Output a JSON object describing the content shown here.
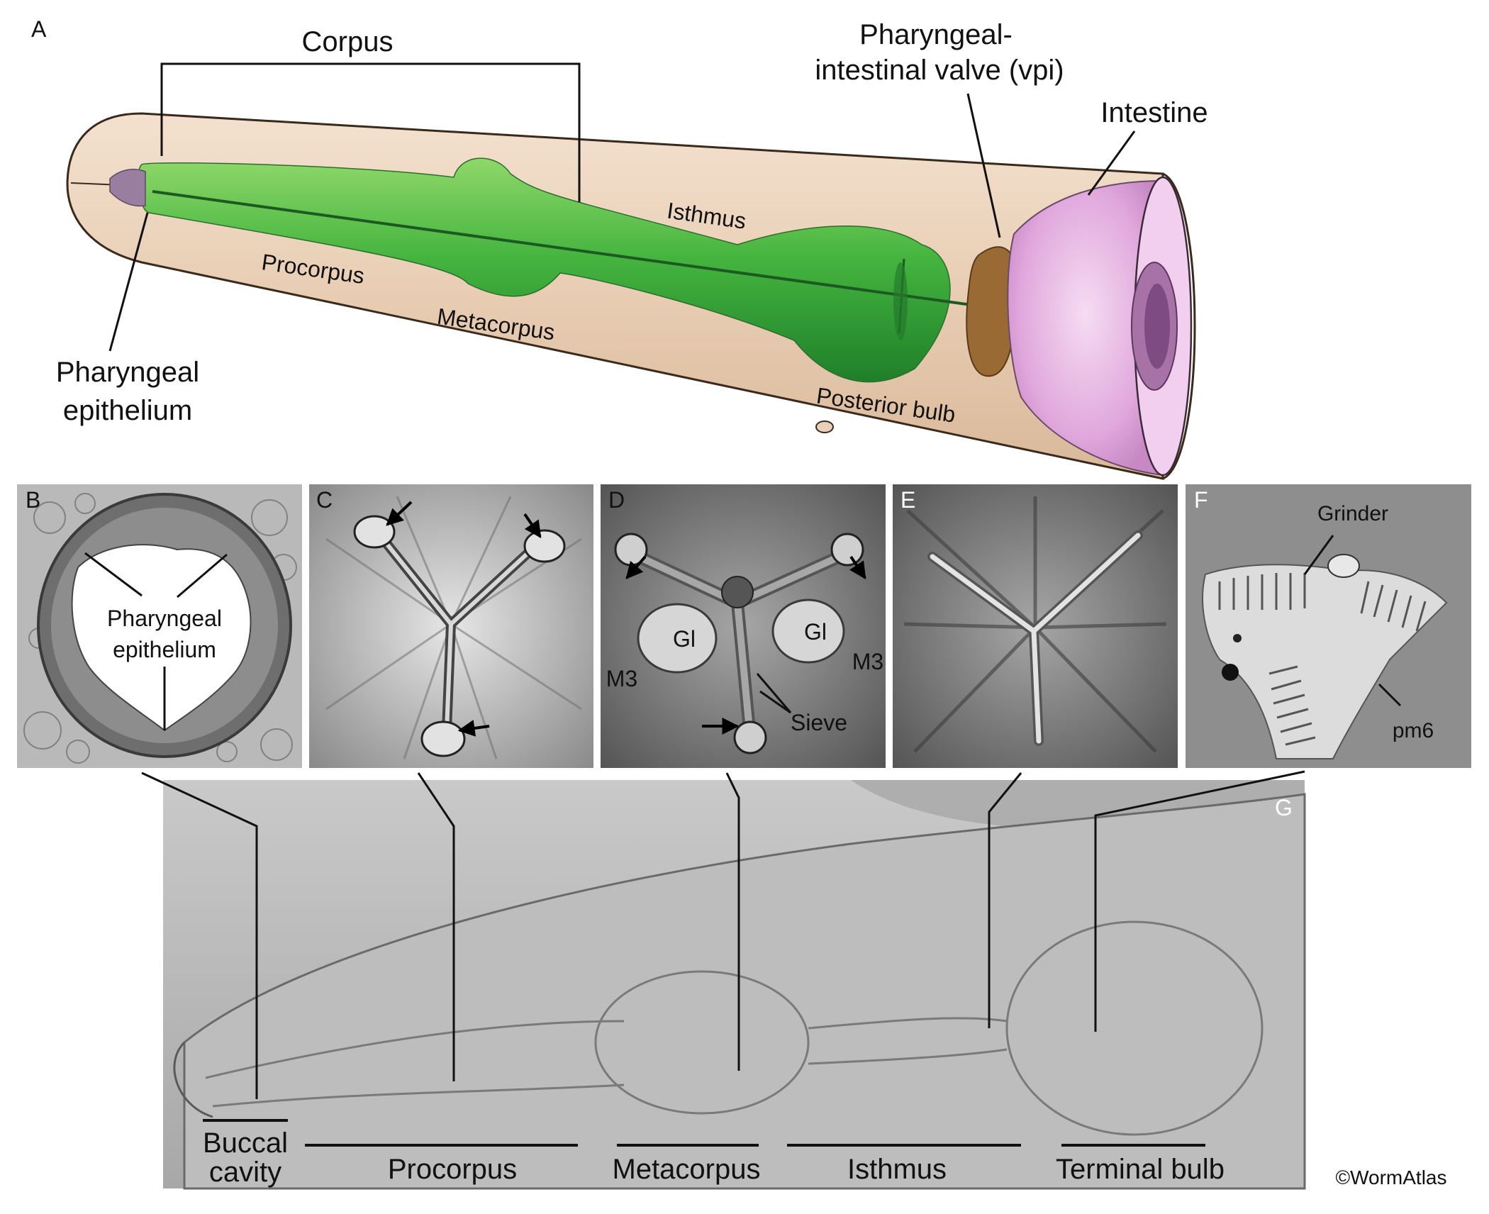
{
  "panel_a": {
    "letter": "A",
    "corpus": "Corpus",
    "valve_line1": "Pharyngeal-",
    "valve_line2": "intestinal valve (vpi)",
    "intestine": "Intestine",
    "isthmus": "Isthmus",
    "procorpus": "Procorpus",
    "metacorpus": "Metacorpus",
    "posterior_bulb": "Posterior bulb",
    "epithelium_line1": "Pharyngeal",
    "epithelium_line2": "epithelium"
  },
  "panel_b": {
    "letter": "B",
    "line1": "Pharyngeal",
    "line2": "epithelium"
  },
  "panel_c": {
    "letter": "C"
  },
  "panel_d": {
    "letter": "D",
    "gl_left": "Gl",
    "gl_right": "Gl",
    "m3_left": "M3",
    "m3_right": "M3",
    "sieve": "Sieve"
  },
  "panel_e": {
    "letter": "E"
  },
  "panel_f": {
    "letter": "F",
    "grinder": "Grinder",
    "pm6": "pm6"
  },
  "panel_g": {
    "letter": "G",
    "buccal_line1": "Buccal",
    "buccal_line2": "cavity",
    "procorpus": "Procorpus",
    "metacorpus": "Metacorpus",
    "isthmus": "Isthmus",
    "terminal_bulb": "Terminal bulb"
  },
  "credit": "©WormAtlas",
  "colors": {
    "body_tan": "#ead0b8",
    "pharynx_green": "#3cae3c",
    "valve_brown": "#9a6a34",
    "intestine_pink": "#e8b6e4",
    "em_gray": "#9a9a9a",
    "dic_gray": "#b4b4b4"
  }
}
